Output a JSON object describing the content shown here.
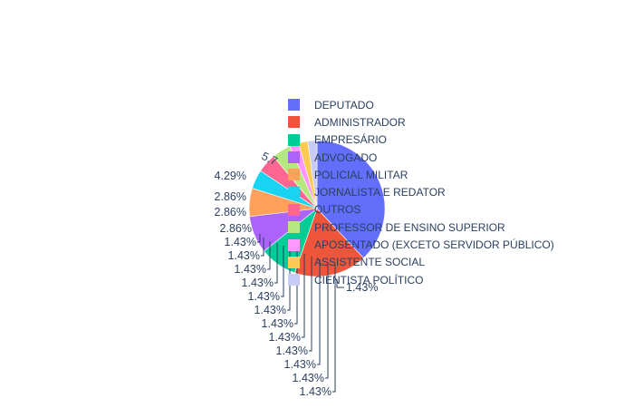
{
  "chart_data": {
    "type": "pie",
    "title": "",
    "categories": [
      "DEPUTADO",
      "ADMINISTRADOR",
      "EMPRESÁRIO",
      "ADVOGADO",
      "POLICIAL MILITAR",
      "JORNALISTA E REDATOR",
      "OUTROS",
      "PROFESSOR DE ENSINO SUPERIOR",
      "APOSENTADO (EXCETO SERVIDOR PÚBLICO)",
      "ASSISTENTE SOCIAL",
      "CIENTISTA POLÍTICO"
    ],
    "visible_labels": [
      "5.7",
      "4.29%",
      "2.86%",
      "2.86%",
      "2.86%",
      "1.43%",
      "1.43%",
      "1.43%",
      "1.43%",
      "1.43%",
      "1.43%",
      "1.43%",
      "1.43%",
      "1.43%",
      "1.43%",
      "1.43%",
      "1.43%"
    ],
    "legend_position": "right",
    "colors": [
      "#636efa",
      "#EF553B",
      "#00cc96",
      "#ab63fa",
      "#FFA15A",
      "#19d3f3",
      "#FF6692",
      "#B6E880",
      "#FF97FF",
      "#FECB52",
      "#c8cbf5"
    ]
  }
}
